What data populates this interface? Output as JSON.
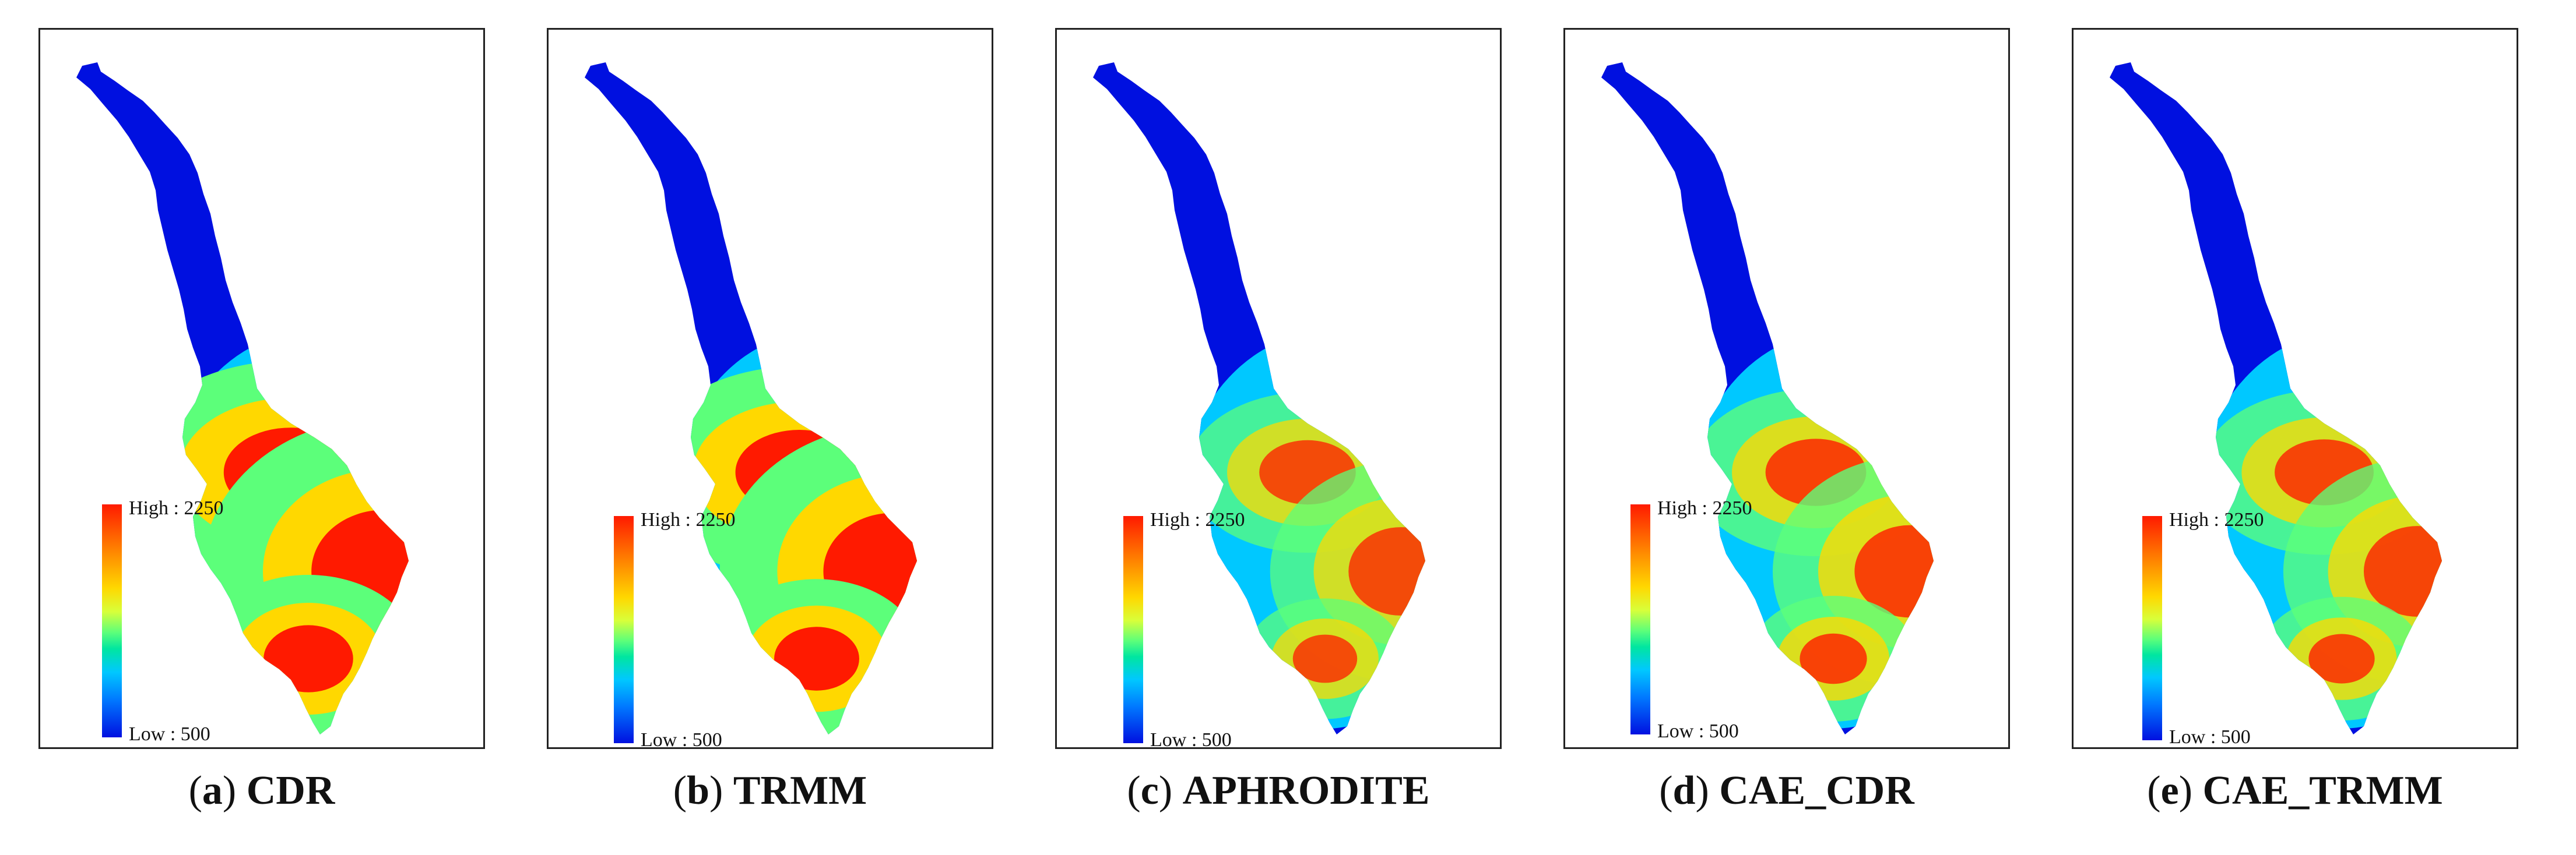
{
  "colors": {
    "low": "#0010e0",
    "mid_low": "#00c8ff",
    "mid": "#5cff7a",
    "mid_high": "#ffd800",
    "high": "#ff1a00"
  },
  "legend": {
    "high_label": "High : 2250",
    "low_label": "Low : 500"
  },
  "panels": [
    {
      "letter": "a",
      "name": "CDR",
      "intensity": 1.0
    },
    {
      "letter": "b",
      "name": "TRMM",
      "intensity": 0.92
    },
    {
      "letter": "c",
      "name": "APHRODITE",
      "intensity": 0.55
    },
    {
      "letter": "d",
      "name": "CAE_CDR",
      "intensity": 0.6
    },
    {
      "letter": "e",
      "name": "CAE_TRMM",
      "intensity": 0.58
    }
  ]
}
